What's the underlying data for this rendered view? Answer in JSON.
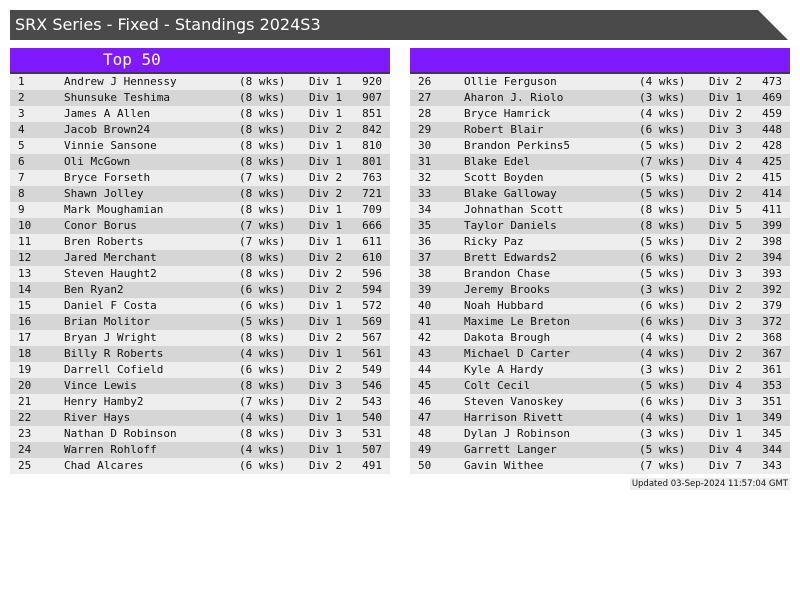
{
  "title": "SRX Series - Fixed - Standings 2024S3",
  "left_panel": {
    "header": "Top 50"
  },
  "right_panel": {
    "header": ""
  },
  "colors": {
    "header_purple": "#7f19ff",
    "title_bar": "#4a4a4a",
    "row_light": "#eeeeee",
    "row_dark": "#d6d6d6"
  },
  "standings": [
    [
      "1",
      "Andrew J Hennessy",
      "(8 wks)",
      "Div 1",
      "920"
    ],
    [
      "2",
      "Shunsuke Teshima",
      "(8 wks)",
      "Div 1",
      "907"
    ],
    [
      "3",
      "James A Allen",
      "(8 wks)",
      "Div 1",
      "851"
    ],
    [
      "4",
      "Jacob Brown24",
      "(8 wks)",
      "Div 2",
      "842"
    ],
    [
      "5",
      "Vinnie Sansone",
      "(8 wks)",
      "Div 1",
      "810"
    ],
    [
      "6",
      "Oli McGown",
      "(8 wks)",
      "Div 1",
      "801"
    ],
    [
      "7",
      "Bryce Forseth",
      "(7 wks)",
      "Div 2",
      "763"
    ],
    [
      "8",
      "Shawn Jolley",
      "(8 wks)",
      "Div 2",
      "721"
    ],
    [
      "9",
      "Mark Moughamian",
      "(8 wks)",
      "Div 1",
      "709"
    ],
    [
      "10",
      "Conor Borus",
      "(7 wks)",
      "Div 1",
      "666"
    ],
    [
      "11",
      "Bren Roberts",
      "(7 wks)",
      "Div 1",
      "611"
    ],
    [
      "12",
      "Jared Merchant",
      "(8 wks)",
      "Div 2",
      "610"
    ],
    [
      "13",
      "Steven Haught2",
      "(8 wks)",
      "Div 2",
      "596"
    ],
    [
      "14",
      "Ben Ryan2",
      "(6 wks)",
      "Div 2",
      "594"
    ],
    [
      "15",
      "Daniel F Costa",
      "(6 wks)",
      "Div 1",
      "572"
    ],
    [
      "16",
      "Brian Molitor",
      "(5 wks)",
      "Div 1",
      "569"
    ],
    [
      "17",
      "Bryan J Wright",
      "(8 wks)",
      "Div 2",
      "567"
    ],
    [
      "18",
      "Billy R Roberts",
      "(4 wks)",
      "Div 1",
      "561"
    ],
    [
      "19",
      "Darrell Cofield",
      "(6 wks)",
      "Div 2",
      "549"
    ],
    [
      "20",
      "Vince Lewis",
      "(8 wks)",
      "Div 3",
      "546"
    ],
    [
      "21",
      "Henry Hamby2",
      "(7 wks)",
      "Div 2",
      "543"
    ],
    [
      "22",
      "River Hays",
      "(4 wks)",
      "Div 1",
      "540"
    ],
    [
      "23",
      "Nathan D Robinson",
      "(8 wks)",
      "Div 3",
      "531"
    ],
    [
      "24",
      "Warren Rohloff",
      "(4 wks)",
      "Div 1",
      "507"
    ],
    [
      "25",
      "Chad Alcares",
      "(6 wks)",
      "Div 2",
      "491"
    ],
    [
      "26",
      "Ollie Ferguson",
      "(4 wks)",
      "Div 2",
      "473"
    ],
    [
      "27",
      "Aharon J. Riolo",
      "(3 wks)",
      "Div 1",
      "469"
    ],
    [
      "28",
      "Bryce Hamrick",
      "(4 wks)",
      "Div 2",
      "459"
    ],
    [
      "29",
      "Robert Blair",
      "(6 wks)",
      "Div 3",
      "448"
    ],
    [
      "30",
      "Brandon Perkins5",
      "(5 wks)",
      "Div 2",
      "428"
    ],
    [
      "31",
      "Blake Edel",
      "(7 wks)",
      "Div 4",
      "425"
    ],
    [
      "32",
      "Scott Boyden",
      "(5 wks)",
      "Div 2",
      "415"
    ],
    [
      "33",
      "Blake Galloway",
      "(5 wks)",
      "Div 2",
      "414"
    ],
    [
      "34",
      "Johnathan Scott",
      "(8 wks)",
      "Div 5",
      "411"
    ],
    [
      "35",
      "Taylor Daniels",
      "(8 wks)",
      "Div 5",
      "399"
    ],
    [
      "36",
      "Ricky Paz",
      "(5 wks)",
      "Div 2",
      "398"
    ],
    [
      "37",
      "Brett Edwards2",
      "(6 wks)",
      "Div 2",
      "394"
    ],
    [
      "38",
      "Brandon Chase",
      "(5 wks)",
      "Div 3",
      "393"
    ],
    [
      "39",
      "Jeremy Brooks",
      "(3 wks)",
      "Div 2",
      "392"
    ],
    [
      "40",
      "Noah Hubbard",
      "(6 wks)",
      "Div 2",
      "379"
    ],
    [
      "41",
      "Maxime Le Breton",
      "(6 wks)",
      "Div 3",
      "372"
    ],
    [
      "42",
      "Dakota Brough",
      "(4 wks)",
      "Div 2",
      "368"
    ],
    [
      "43",
      "Michael D Carter",
      "(4 wks)",
      "Div 2",
      "367"
    ],
    [
      "44",
      "Kyle A Hardy",
      "(3 wks)",
      "Div 2",
      "361"
    ],
    [
      "45",
      "Colt Cecil",
      "(5 wks)",
      "Div 4",
      "353"
    ],
    [
      "46",
      "Steven Vanoskey",
      "(6 wks)",
      "Div 3",
      "351"
    ],
    [
      "47",
      "Harrison Rivett",
      "(4 wks)",
      "Div 1",
      "349"
    ],
    [
      "48",
      "Dylan J Robinson",
      "(3 wks)",
      "Div 1",
      "345"
    ],
    [
      "49",
      "Garrett Langer",
      "(5 wks)",
      "Div 4",
      "344"
    ],
    [
      "50",
      "Gavin Withee",
      "(7 wks)",
      "Div 7",
      "343"
    ]
  ],
  "updated": "Updated 03-Sep-2024 11:57:04 GMT"
}
